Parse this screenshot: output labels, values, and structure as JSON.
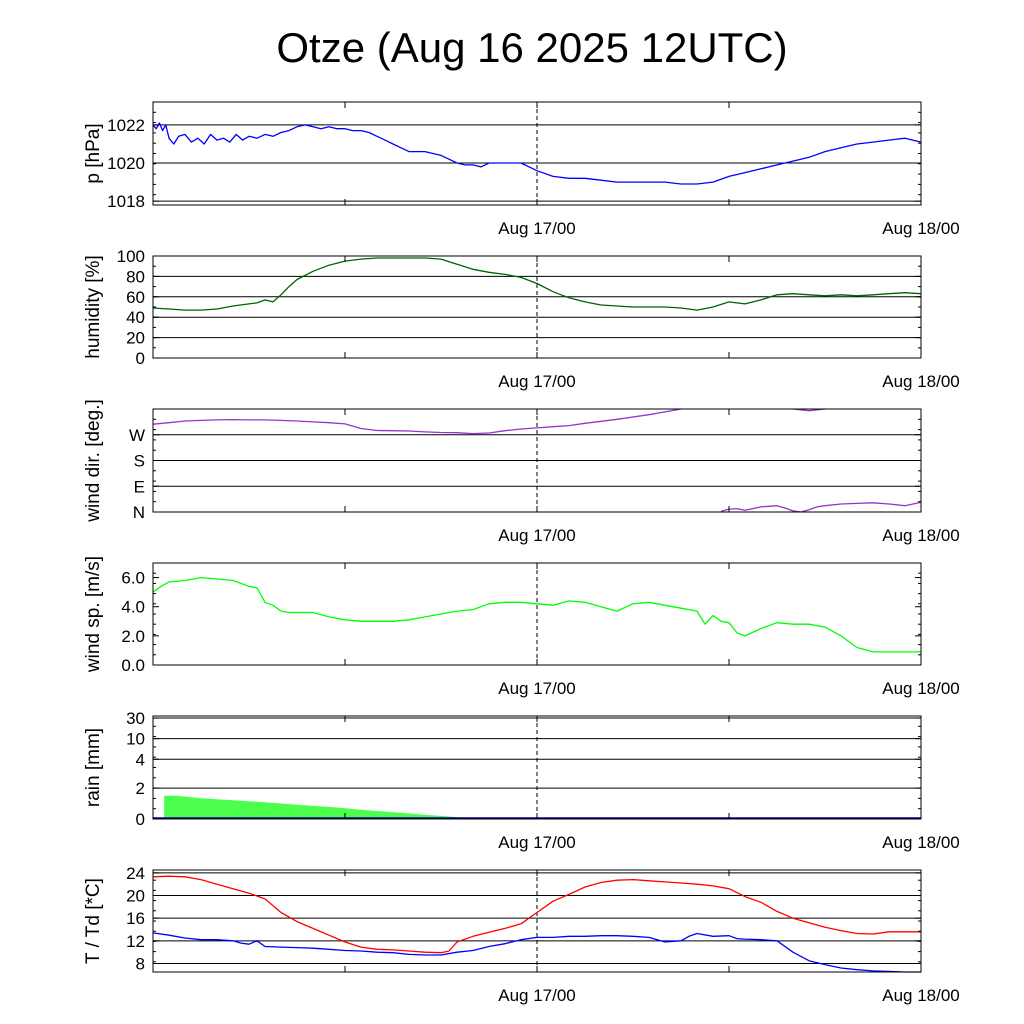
{
  "title": "Otze (Aug 16 2025 12UTC)",
  "x_tick_labels": [
    "Aug 17/00",
    "Aug 18/00"
  ],
  "chart_data": [
    {
      "type": "line",
      "id": "pressure",
      "ylabel": "p [hPa]",
      "ylim": [
        1017.8,
        1023.2
      ],
      "yticks": [
        1018,
        1020,
        1022
      ],
      "x_range_hours": [
        12,
        60
      ],
      "series": [
        {
          "color": "#0000ff",
          "x": [
            12,
            12.2,
            12.4,
            12.6,
            12.8,
            13,
            13.3,
            13.6,
            14,
            14.4,
            14.8,
            15.2,
            15.6,
            16,
            16.4,
            16.8,
            17.2,
            17.6,
            18,
            18.5,
            19,
            19.5,
            20,
            20.5,
            21,
            21.5,
            22,
            22.5,
            23,
            23.5,
            24,
            24.5,
            25,
            25.5,
            26,
            26.5,
            27,
            27.5,
            28,
            29,
            30,
            30.5,
            31,
            31.5,
            32,
            32.5,
            33,
            33.5,
            34,
            35,
            36,
            37,
            38,
            39,
            40,
            41,
            42,
            43,
            44,
            45,
            46,
            47,
            48,
            49,
            50,
            51,
            52,
            53,
            54,
            55,
            56,
            57,
            58,
            59,
            60
          ],
          "y": [
            1022,
            1021.8,
            1022.1,
            1021.7,
            1022.0,
            1021.3,
            1021.0,
            1021.4,
            1021.5,
            1021.1,
            1021.3,
            1021.0,
            1021.5,
            1021.2,
            1021.3,
            1021.1,
            1021.5,
            1021.2,
            1021.4,
            1021.3,
            1021.5,
            1021.4,
            1021.6,
            1021.7,
            1021.9,
            1022.0,
            1021.9,
            1021.8,
            1021.9,
            1021.8,
            1021.8,
            1021.7,
            1021.7,
            1021.6,
            1021.4,
            1021.2,
            1021.0,
            1020.8,
            1020.6,
            1020.6,
            1020.4,
            1020.2,
            1020.0,
            1019.9,
            1019.9,
            1019.8,
            1020.0,
            1020.0,
            1020.0,
            1020.0,
            1019.6,
            1019.3,
            1019.2,
            1019.2,
            1019.1,
            1019.0,
            1019.0,
            1019.0,
            1019.0,
            1018.9,
            1018.9,
            1019.0,
            1019.3,
            1019.5,
            1019.7,
            1019.9,
            1020.1,
            1020.3,
            1020.6,
            1020.8,
            1021.0,
            1021.1,
            1021.2,
            1021.3,
            1021.1
          ]
        }
      ],
      "gridlines": [
        1018,
        1020,
        1022
      ]
    },
    {
      "type": "line",
      "id": "humidity",
      "ylabel": "humidity [%]",
      "ylim": [
        0,
        100
      ],
      "yticks": [
        0,
        20,
        40,
        60,
        80,
        100
      ],
      "x_range_hours": [
        12,
        60
      ],
      "series": [
        {
          "color": "#006400",
          "x": [
            12,
            13,
            14,
            15,
            16,
            17,
            18,
            18.5,
            19,
            19.5,
            20,
            20.5,
            21,
            22,
            23,
            24,
            25,
            26,
            27,
            28,
            29,
            30,
            31,
            32,
            33,
            34,
            35,
            36,
            37,
            38,
            39,
            40,
            41,
            42,
            43,
            44,
            45,
            46,
            47,
            48,
            49,
            50,
            51,
            52,
            53,
            54,
            55,
            56,
            57,
            58,
            59,
            60
          ],
          "y": [
            49,
            48,
            47,
            47,
            48,
            51,
            53,
            54,
            57,
            55,
            62,
            70,
            77,
            85,
            91,
            95,
            97,
            98,
            98,
            98,
            98,
            97,
            92,
            87,
            84,
            82,
            79,
            73,
            65,
            59,
            55,
            52,
            51,
            50,
            50,
            50,
            49,
            47,
            50,
            55,
            53,
            57,
            62,
            63,
            62,
            61,
            62,
            61,
            62,
            63,
            64,
            63
          ]
        }
      ],
      "gridlines": [
        0,
        20,
        40,
        60,
        80
      ]
    },
    {
      "type": "line",
      "id": "wind_direction",
      "ylabel": "wind dir. [deg.]",
      "ylim": [
        0,
        360
      ],
      "yticks": [
        0,
        90,
        180,
        270
      ],
      "ytick_labels": [
        "N",
        "E",
        "S",
        "W"
      ],
      "x_range_hours": [
        12,
        60
      ],
      "series": [
        {
          "color": "#9932cc",
          "segments": [
            {
              "x": [
                12,
                13,
                14,
                15,
                16,
                17,
                18,
                19,
                20,
                21,
                22,
                23,
                24,
                25,
                26,
                27,
                28,
                29,
                30,
                31,
                32,
                33,
                34,
                35,
                36,
                37,
                38,
                39,
                40,
                41,
                42,
                43,
                44,
                45
              ],
              "y": [
                307,
                312,
                318,
                320,
                322,
                323,
                322,
                322,
                320,
                318,
                315,
                312,
                308,
                292,
                285,
                284,
                283,
                280,
                278,
                277,
                274,
                276,
                284,
                290,
                294,
                298,
                302,
                310,
                317,
                324,
                332,
                340,
                350,
                360
              ]
            },
            {
              "x": [
                52,
                53,
                54
              ],
              "y": [
                360,
                354,
                360
              ]
            },
            {
              "x": [
                47.5,
                48,
                48.5,
                49,
                50,
                51,
                51.5,
                52,
                52.5,
                53,
                53.5,
                54,
                55,
                56,
                57,
                58,
                59,
                60
              ],
              "y": [
                2,
                10,
                12,
                6,
                18,
                22,
                14,
                4,
                0,
                8,
                18,
                22,
                28,
                30,
                32,
                28,
                22,
                34
              ]
            }
          ]
        }
      ],
      "gridlines": [
        90,
        180,
        270
      ]
    },
    {
      "type": "line",
      "id": "wind_speed",
      "ylabel": "wind sp. [m/s]",
      "ylim": [
        0,
        7
      ],
      "yticks": [
        0,
        2,
        4,
        6
      ],
      "ytick_labels": [
        "0.0",
        "2.0",
        "4.0",
        "6.0"
      ],
      "x_range_hours": [
        12,
        60
      ],
      "series": [
        {
          "color": "#00ff00",
          "x": [
            12,
            12.5,
            13,
            14,
            15,
            16,
            17,
            18,
            18.5,
            19,
            19.5,
            20,
            20.5,
            21,
            22,
            23,
            24,
            25,
            26,
            27,
            28,
            29,
            30,
            31,
            32,
            33,
            34,
            35,
            36,
            37,
            38,
            39,
            40,
            41,
            42,
            43,
            44,
            45,
            45.5,
            46,
            46.5,
            47,
            47.5,
            48,
            48.5,
            49,
            50,
            51,
            52,
            53,
            54,
            55,
            56,
            57,
            58,
            59,
            60
          ],
          "y": [
            5.0,
            5.4,
            5.7,
            5.8,
            6.0,
            5.9,
            5.8,
            5.4,
            5.3,
            4.3,
            4.1,
            3.7,
            3.6,
            3.6,
            3.6,
            3.3,
            3.1,
            3.0,
            3.0,
            3.0,
            3.1,
            3.3,
            3.5,
            3.7,
            3.8,
            4.2,
            4.3,
            4.3,
            4.2,
            4.1,
            4.4,
            4.3,
            4.0,
            3.7,
            4.2,
            4.3,
            4.1,
            3.9,
            3.8,
            3.7,
            2.8,
            3.4,
            3.0,
            2.9,
            2.2,
            2.0,
            2.5,
            2.9,
            2.8,
            2.8,
            2.6,
            2.0,
            1.2,
            0.9,
            0.9,
            0.9,
            0.9
          ]
        }
      ],
      "gridlines": []
    },
    {
      "type": "area",
      "id": "rain",
      "ylabel": "rain [mm]",
      "ylim": [
        0,
        30
      ],
      "yticks": [
        0,
        2,
        4,
        10,
        30
      ],
      "x_range_hours": [
        12,
        60
      ],
      "series": [
        {
          "color": "#4cff4c",
          "x": [
            12.7,
            13.5,
            14,
            15,
            16,
            17,
            18,
            19,
            20,
            21,
            22,
            23,
            24,
            25,
            26,
            27,
            28,
            29,
            30,
            31,
            32,
            33,
            34,
            35,
            36,
            37,
            38,
            39,
            40,
            41,
            42,
            43,
            44,
            45,
            46,
            47,
            48,
            49,
            50,
            51,
            52,
            53,
            54,
            55,
            56,
            57,
            58,
            59,
            60
          ],
          "y": [
            1.5,
            1.5,
            1.45,
            1.35,
            1.28,
            1.22,
            1.15,
            1.08,
            1.0,
            0.92,
            0.85,
            0.78,
            0.7,
            0.6,
            0.52,
            0.44,
            0.36,
            0.28,
            0.2,
            0.12,
            0.05,
            0.02,
            0.0,
            0.0,
            0.0,
            0.0,
            0.0,
            0.0,
            0.0,
            0.0,
            0.0,
            0.0,
            0.0,
            0.0,
            0.0,
            0.0,
            0.0,
            0.0,
            0.0,
            0.0,
            0.0,
            0.0,
            0.0,
            0.0,
            0.0,
            0.0,
            0.0,
            0.0,
            0.0
          ]
        }
      ],
      "gridlines": [
        2,
        4,
        10,
        30
      ]
    },
    {
      "type": "line",
      "id": "temperature_dewpoint",
      "ylabel": "T / Td [*C]",
      "ylim": [
        6.5,
        24.5
      ],
      "yticks": [
        8,
        12,
        16,
        20,
        24
      ],
      "x_range_hours": [
        12,
        60
      ],
      "series": [
        {
          "color": "#ff0000",
          "x": [
            12,
            13,
            14,
            15,
            16,
            17,
            18,
            19,
            20,
            21,
            22,
            23,
            24,
            25,
            26,
            27,
            28,
            29,
            30,
            30.5,
            31,
            32,
            33,
            34,
            35,
            36,
            37,
            38,
            39,
            40,
            41,
            42,
            43,
            44,
            45,
            46,
            47,
            48,
            49,
            50,
            51,
            52,
            53,
            54,
            55,
            56,
            57,
            58,
            59,
            60
          ],
          "y": [
            23.3,
            23.4,
            23.3,
            22.8,
            22.0,
            21.2,
            20.4,
            19.4,
            17.0,
            15.4,
            14.2,
            13.0,
            11.8,
            10.9,
            10.5,
            10.4,
            10.2,
            10.0,
            9.9,
            10.2,
            11.8,
            12.8,
            13.5,
            14.2,
            15.0,
            17.0,
            19.0,
            20.2,
            21.5,
            22.3,
            22.7,
            22.8,
            22.6,
            22.4,
            22.2,
            22.0,
            21.7,
            21.2,
            19.8,
            18.8,
            17.2,
            16.0,
            15.2,
            14.4,
            13.8,
            13.3,
            13.2,
            13.6,
            13.6,
            13.6
          ]
        },
        {
          "color": "#0000ff",
          "x": [
            12,
            13,
            14,
            15,
            16,
            17,
            17.5,
            18,
            18.5,
            19,
            20,
            21,
            22,
            23,
            24,
            25,
            26,
            27,
            28,
            29,
            30,
            31,
            32,
            33,
            34,
            35,
            36,
            37,
            38,
            39,
            40,
            41,
            42,
            43,
            44,
            45,
            45.5,
            46,
            47,
            48,
            48.5,
            49,
            50,
            51,
            52,
            53,
            54,
            55,
            56,
            57,
            58,
            59,
            60
          ],
          "y": [
            13.4,
            13.0,
            12.5,
            12.2,
            12.2,
            12.0,
            11.6,
            11.4,
            12.0,
            11.0,
            10.9,
            10.8,
            10.7,
            10.5,
            10.3,
            10.2,
            10.0,
            9.9,
            9.6,
            9.5,
            9.5,
            10.0,
            10.3,
            11.0,
            11.5,
            12.2,
            12.6,
            12.6,
            12.8,
            12.8,
            12.9,
            12.9,
            12.8,
            12.6,
            11.8,
            12.0,
            12.8,
            13.3,
            12.8,
            12.9,
            12.4,
            12.3,
            12.2,
            12.0,
            10.0,
            8.5,
            7.8,
            7.2,
            6.9,
            6.7,
            6.6,
            6.5,
            6.5
          ]
        }
      ],
      "gridlines": [
        8,
        12,
        16,
        20,
        24
      ]
    }
  ]
}
